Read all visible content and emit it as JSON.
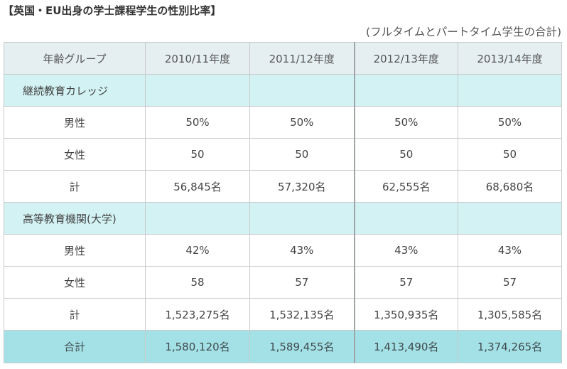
{
  "title": "【英国・EU出身の学士課程学生の性別比率】",
  "subtitle": "(フルタイムとパートタイム学生の合計)",
  "table": {
    "header": [
      "年齢グループ",
      "2010/11年度",
      "2011/12年度",
      "2012/13年度",
      "2013/14年度"
    ],
    "sections": [
      {
        "label": "継続教育カレッジ",
        "rows": [
          {
            "label": "男性",
            "values": [
              "50%",
              "50%",
              "50%",
              "50%"
            ]
          },
          {
            "label": "女性",
            "values": [
              "50",
              "50",
              "50",
              "50"
            ]
          },
          {
            "label": "計",
            "values": [
              "56,845名",
              "57,320名",
              "62,555名",
              "68,680名"
            ]
          }
        ]
      },
      {
        "label": "高等教育機関(大学)",
        "rows": [
          {
            "label": "男性",
            "values": [
              "42%",
              "43%",
              "43%",
              "43%"
            ]
          },
          {
            "label": "女性",
            "values": [
              "58",
              "57",
              "57",
              "57"
            ]
          },
          {
            "label": "計",
            "values": [
              "1,523,275名",
              "1,532,135名",
              "1,350,935名",
              "1,305,585名"
            ]
          }
        ]
      }
    ],
    "total": {
      "label": "合計",
      "values": [
        "1,580,120名",
        "1,589,455名",
        "1,413,490名",
        "1,374,265名"
      ]
    }
  },
  "colors": {
    "header_bg": "#e5eff1",
    "section_bg": "#d3f2f4",
    "total_bg": "#a4e1e6",
    "border": "#c9c9c9"
  }
}
